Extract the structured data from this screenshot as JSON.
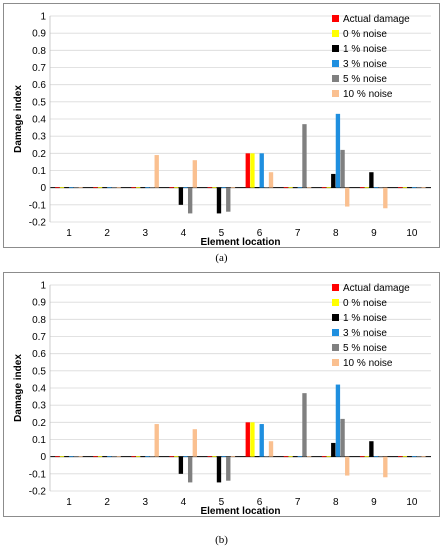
{
  "chart_data": [
    {
      "type": "bar",
      "panel_label": "(a)",
      "xlabel": "Element location",
      "ylabel": "Damage index",
      "ylim": [
        -0.2,
        1
      ],
      "yticks": [
        "1",
        "0.9",
        "0.8",
        "0.7",
        "0.6",
        "0.5",
        "0.4",
        "0.3",
        "0.2",
        "0.1",
        "0",
        "-0.1",
        "-0.2"
      ],
      "categories": [
        "1",
        "2",
        "3",
        "4",
        "5",
        "6",
        "7",
        "8",
        "9",
        "10"
      ],
      "legend_position": "top-right",
      "series": [
        {
          "name": "Actual damage",
          "color": "#ff0000",
          "values": [
            0,
            0,
            0,
            0,
            0,
            0.2,
            0,
            0,
            0,
            0
          ]
        },
        {
          "name": "0 % noise",
          "color": "#ffff00",
          "values": [
            0,
            0,
            0,
            0,
            0,
            0.2,
            0,
            0,
            0,
            0
          ]
        },
        {
          "name": "1 % noise",
          "color": "#000000",
          "values": [
            0,
            0,
            0,
            -0.1,
            -0.15,
            0,
            0,
            0.08,
            0.09,
            0
          ]
        },
        {
          "name": "3 % noise",
          "color": "#1f8fdf",
          "values": [
            0,
            0,
            0,
            0,
            0,
            0.2,
            0,
            0.43,
            0,
            0
          ]
        },
        {
          "name": "5 % noise",
          "color": "#808080",
          "values": [
            0,
            0,
            0,
            -0.15,
            -0.14,
            0,
            0.37,
            0.22,
            0,
            0
          ]
        },
        {
          "name": "10 % noise",
          "color": "#fac090",
          "values": [
            0,
            0,
            0.19,
            0.16,
            0,
            0.09,
            0,
            -0.11,
            -0.12,
            0
          ]
        }
      ]
    },
    {
      "type": "bar",
      "panel_label": "(b)",
      "xlabel": "Element location",
      "ylabel": "Damage index",
      "ylim": [
        -0.2,
        1
      ],
      "yticks": [
        "1",
        "0.9",
        "0.8",
        "0.7",
        "0.6",
        "0.5",
        "0.4",
        "0.3",
        "0.2",
        "0.1",
        "0",
        "-0.1",
        "-0.2"
      ],
      "categories": [
        "1",
        "2",
        "3",
        "4",
        "5",
        "6",
        "7",
        "8",
        "9",
        "10"
      ],
      "legend_position": "top-right",
      "series": [
        {
          "name": "Actual damage",
          "color": "#ff0000",
          "values": [
            0,
            0,
            0,
            0,
            0,
            0.2,
            0,
            0,
            0,
            0
          ]
        },
        {
          "name": "0 % noise",
          "color": "#ffff00",
          "values": [
            0,
            0,
            0,
            0,
            0,
            0.2,
            0,
            0,
            0,
            0
          ]
        },
        {
          "name": "1 % noise",
          "color": "#000000",
          "values": [
            0,
            0,
            0,
            -0.1,
            -0.15,
            0,
            0,
            0.08,
            0.09,
            0
          ]
        },
        {
          "name": "3 % noise",
          "color": "#1f8fdf",
          "values": [
            0,
            0,
            0,
            0,
            0,
            0.19,
            0,
            0.42,
            0,
            0
          ]
        },
        {
          "name": "5 % noise",
          "color": "#808080",
          "values": [
            0,
            0,
            0,
            -0.15,
            -0.14,
            0,
            0.37,
            0.22,
            0,
            0
          ]
        },
        {
          "name": "10 % noise",
          "color": "#fac090",
          "values": [
            0,
            0,
            0.19,
            0.16,
            0,
            0.09,
            0,
            -0.11,
            -0.12,
            0
          ]
        }
      ]
    }
  ]
}
